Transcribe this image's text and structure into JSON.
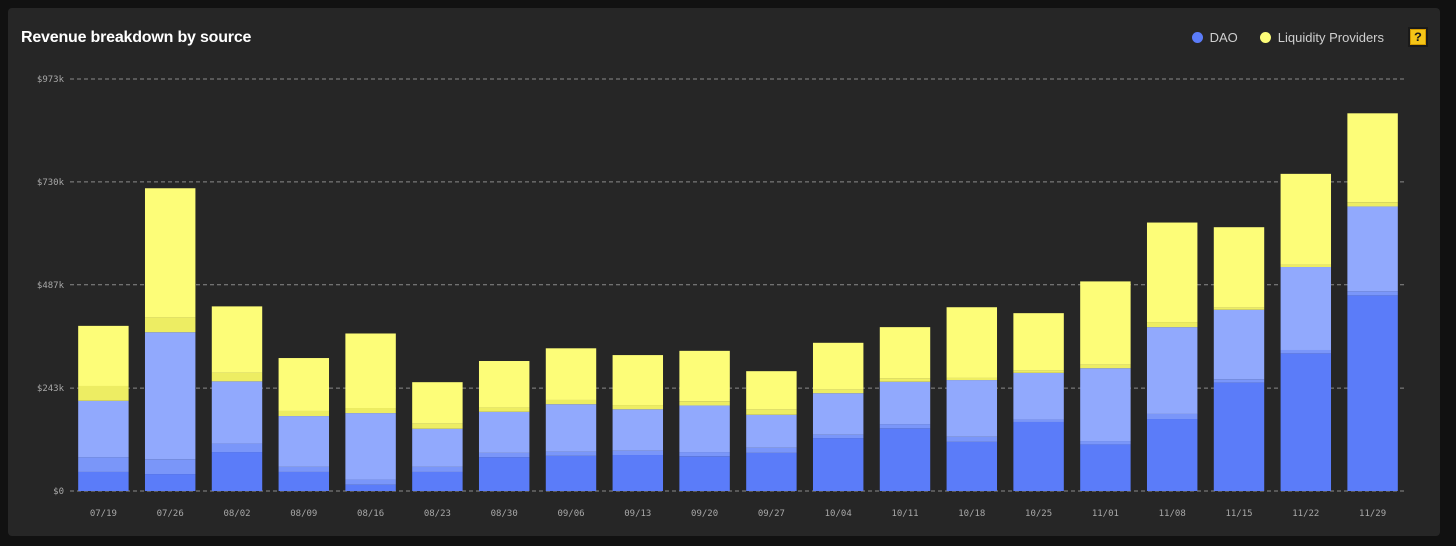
{
  "chart_data": {
    "type": "bar",
    "stacked": true,
    "title": "Revenue breakdown by source",
    "xlabel": "",
    "ylabel": "",
    "legend_position": "top-right",
    "grid": "horizontal-dashed",
    "ylim": [
      0,
      973
    ],
    "y_ticks": [
      {
        "value": 0,
        "label": "$0"
      },
      {
        "value": 243,
        "label": "$243k"
      },
      {
        "value": 487,
        "label": "$487k"
      },
      {
        "value": 730,
        "label": "$730k"
      },
      {
        "value": 973,
        "label": "$973k"
      }
    ],
    "categories": [
      "07/19",
      "07/26",
      "08/02",
      "08/09",
      "08/16",
      "08/23",
      "08/30",
      "09/06",
      "09/13",
      "09/20",
      "09/27",
      "10/04",
      "10/11",
      "10/18",
      "10/25",
      "11/01",
      "11/08",
      "11/15",
      "11/22",
      "11/29"
    ],
    "legend": [
      {
        "name": "DAO",
        "color": "#5b7cf9"
      },
      {
        "name": "Liquidity Providers",
        "color": "#fdfd78"
      }
    ],
    "series": [
      {
        "color": "#5b7cf9",
        "values": [
          45,
          40,
          92,
          45,
          15,
          45,
          80,
          83,
          85,
          82,
          90,
          125,
          148,
          116,
          163,
          110,
          170,
          256,
          325,
          462
        ]
      },
      {
        "color": "#7a96f9",
        "values": [
          35,
          35,
          20,
          12,
          12,
          12,
          10,
          10,
          10,
          10,
          12,
          8,
          10,
          12,
          6,
          8,
          12,
          8,
          8,
          10
        ]
      },
      {
        "color": "#91a9fd",
        "values": [
          133,
          300,
          147,
          120,
          157,
          90,
          97,
          112,
          98,
          110,
          78,
          98,
          100,
          134,
          110,
          172,
          205,
          164,
          196,
          200
        ]
      },
      {
        "color": "#eded63",
        "values": [
          35,
          35,
          20,
          12,
          12,
          12,
          10,
          10,
          10,
          10,
          12,
          8,
          8,
          5,
          5,
          8,
          12,
          5,
          5,
          10
        ]
      },
      {
        "color": "#fdfd78",
        "values": [
          142,
          305,
          157,
          125,
          176,
          98,
          110,
          122,
          118,
          119,
          91,
          111,
          121,
          167,
          136,
          197,
          235,
          190,
          215,
          210
        ]
      }
    ]
  }
}
